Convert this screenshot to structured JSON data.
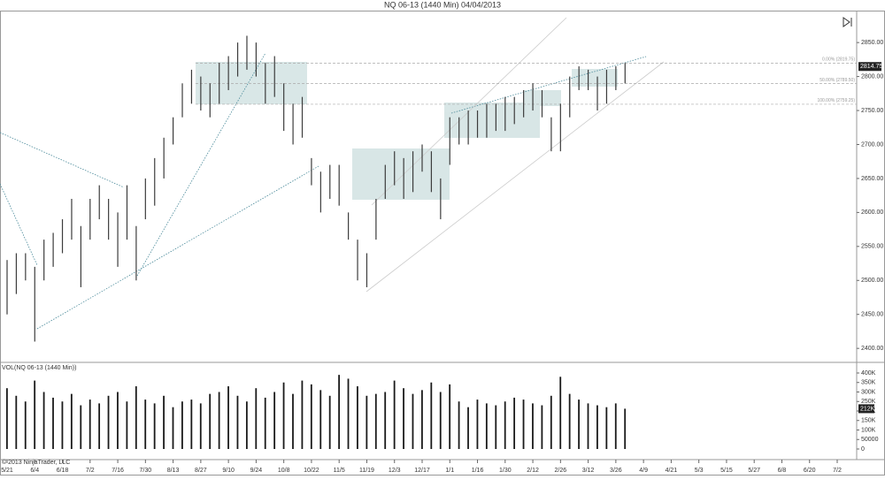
{
  "chart_data": {
    "type": "ohlc",
    "title": "NQ 06-13 (1440 Min)  04/04/2013",
    "volume_title": "VOL(NQ 06-13 (1440 Min))",
    "copyright": "© 2013 NinjaTrader, LLC",
    "categories": [
      "5/21",
      "6/4",
      "6/18",
      "7/2",
      "7/16",
      "7/30",
      "8/13",
      "8/27",
      "9/10",
      "9/24",
      "10/8",
      "10/22",
      "11/5",
      "11/19",
      "12/3",
      "12/17",
      "1/1",
      "1/16",
      "1/30",
      "2/12",
      "2/26",
      "3/12",
      "3/26",
      "4/9",
      "4/21",
      "5/3",
      "5/15",
      "5/27",
      "6/8",
      "6/20",
      "7/2"
    ],
    "high": [
      2530,
      2540,
      2540,
      2520,
      2560,
      2570,
      2590,
      2620,
      2580,
      2620,
      2640,
      2620,
      2600,
      2640,
      2580,
      2650,
      2680,
      2710,
      2740,
      2790,
      2810,
      2800,
      2790,
      2820,
      2830,
      2850,
      2860,
      2850,
      2820,
      2830,
      2790,
      2760,
      2770,
      2680,
      2660,
      2670,
      2670,
      2600,
      2560,
      2540,
      2620,
      2670,
      2690,
      2680,
      2690,
      2700,
      2690,
      2650,
      2740,
      2740,
      2750,
      2750,
      2760,
      2760,
      2770,
      2770,
      2780,
      2790,
      2780,
      2740,
      2760,
      2800,
      2815,
      2810,
      2800,
      2810,
      2815,
      2820
    ],
    "low": [
      2450,
      2480,
      2500,
      2410,
      2500,
      2520,
      2540,
      2560,
      2490,
      2560,
      2590,
      2560,
      2520,
      2560,
      2500,
      2590,
      2610,
      2650,
      2700,
      2740,
      2760,
      2750,
      2740,
      2760,
      2780,
      2800,
      2810,
      2800,
      2760,
      2770,
      2720,
      2700,
      2710,
      2640,
      2600,
      2620,
      2610,
      2560,
      2500,
      2490,
      2560,
      2620,
      2640,
      2620,
      2630,
      2660,
      2630,
      2590,
      2670,
      2700,
      2700,
      2710,
      2710,
      2720,
      2720,
      2730,
      2740,
      2750,
      2740,
      2690,
      2690,
      2740,
      2780,
      2780,
      2750,
      2760,
      2780,
      2790
    ],
    "volume": [
      320000,
      280000,
      250000,
      360000,
      300000,
      270000,
      250000,
      290000,
      230000,
      260000,
      240000,
      280000,
      300000,
      250000,
      330000,
      260000,
      240000,
      280000,
      220000,
      250000,
      260000,
      240000,
      290000,
      300000,
      330000,
      280000,
      250000,
      320000,
      270000,
      300000,
      350000,
      290000,
      360000,
      340000,
      310000,
      280000,
      390000,
      370000,
      330000,
      280000,
      290000,
      300000,
      360000,
      320000,
      290000,
      310000,
      350000,
      300000,
      340000,
      250000,
      220000,
      260000,
      240000,
      230000,
      250000,
      270000,
      260000,
      240000,
      230000,
      280000,
      380000,
      290000,
      260000,
      240000,
      230000,
      220000,
      240000,
      212000
    ],
    "color": "#3c3c3c",
    "volume_color": "#1a1a1a",
    "last_price": 2814.75,
    "last_volume_label": "212K",
    "ylim": [
      2382,
      2897
    ],
    "yticks": [
      {
        "value": 2400,
        "label": "2400.00"
      },
      {
        "value": 2450,
        "label": "2450.00"
      },
      {
        "value": 2500,
        "label": "2500.00"
      },
      {
        "value": 2550,
        "label": "2550.00"
      },
      {
        "value": 2600,
        "label": "2600.00"
      },
      {
        "value": 2650,
        "label": "2650.00"
      },
      {
        "value": 2700,
        "label": "2700.00"
      },
      {
        "value": 2750,
        "label": "2750.00"
      },
      {
        "value": 2800,
        "label": "2800.00"
      },
      {
        "value": 2850,
        "label": "2850.00"
      }
    ],
    "vlim": [
      -46500,
      446500
    ],
    "vticks": [
      0,
      50000,
      {
        "value": 100000,
        "label": "100K"
      },
      {
        "value": 150000,
        "label": "150K"
      },
      {
        "value": 200000,
        "label": "200K"
      },
      {
        "value": 250000,
        "label": "250K"
      },
      {
        "value": 300000,
        "label": "300K"
      },
      {
        "value": 350000,
        "label": "350K"
      },
      {
        "value": 400000,
        "label": "400K"
      }
    ],
    "fib_levels": [
      {
        "value": 2819.75,
        "label": "0.00% (2819.75)"
      },
      {
        "value": 2789.5,
        "label": "50.00% (2789.50)"
      },
      {
        "value": 2759.25,
        "label": "100.00% (2759.25)"
      }
    ]
  }
}
